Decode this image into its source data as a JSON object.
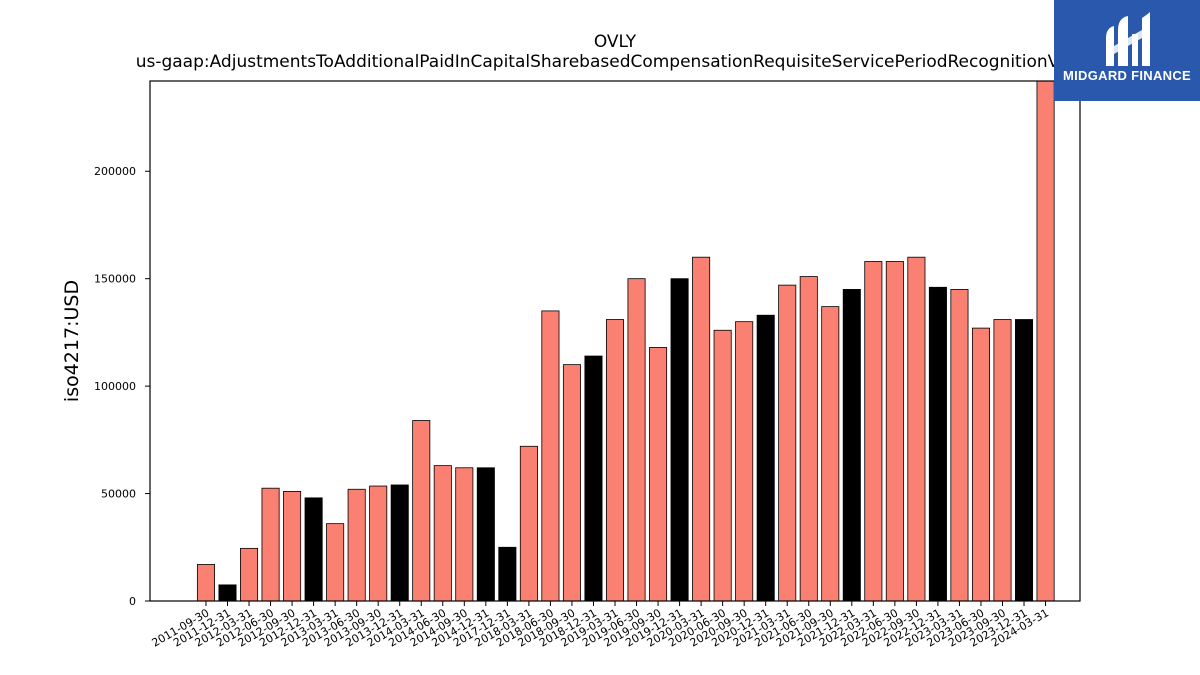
{
  "logo": {
    "text": "MIDGARD FINANCE",
    "background": "#2a58ac",
    "mark_icon": "midgard-m-icon"
  },
  "chart_data": {
    "type": "bar",
    "title": "OVLY",
    "subtitle": "us-gaap:AdjustmentsToAdditionalPaidInCapitalSharebasedCompensationRequisiteServicePeriodRecognitionValue",
    "xlabel": "",
    "ylabel": "iso4217:USD",
    "ylim": [
      0,
      242000
    ],
    "yticks": [
      0,
      50000,
      100000,
      150000,
      200000
    ],
    "grid": false,
    "legend": "none",
    "colors": {
      "default": "#fa8072",
      "highlight": "#000000",
      "edge": "#000000"
    },
    "categories": [
      "2011-09-30",
      "2011-12-31",
      "2012-03-31",
      "2012-06-30",
      "2012-09-30",
      "2012-12-31",
      "2013-03-31",
      "2013-06-30",
      "2013-09-30",
      "2013-12-31",
      "2014-03-31",
      "2014-06-30",
      "2014-09-30",
      "2014-12-31",
      "2017-12-31",
      "2018-03-31",
      "2018-06-30",
      "2018-09-30",
      "2018-12-31",
      "2019-03-31",
      "2019-06-30",
      "2019-09-30",
      "2019-12-31",
      "2020-03-31",
      "2020-06-30",
      "2020-09-30",
      "2020-12-31",
      "2021-03-31",
      "2021-06-30",
      "2021-09-30",
      "2021-12-31",
      "2022-03-31",
      "2022-06-30",
      "2022-09-30",
      "2022-12-31",
      "2023-03-31",
      "2023-06-30",
      "2023-09-30",
      "2023-12-31",
      "2024-03-31"
    ],
    "values": [
      17000,
      7500,
      24500,
      52500,
      51000,
      48000,
      36000,
      52000,
      53500,
      54000,
      84000,
      63000,
      62000,
      62000,
      25000,
      72000,
      135000,
      110000,
      114000,
      131000,
      150000,
      118000,
      150000,
      160000,
      126000,
      130000,
      133000,
      147000,
      151000,
      137000,
      145000,
      158000,
      158000,
      160000,
      146000,
      145000,
      127000,
      131000,
      131000,
      242000
    ],
    "highlight": [
      false,
      true,
      false,
      false,
      false,
      true,
      false,
      false,
      false,
      true,
      false,
      false,
      false,
      true,
      true,
      false,
      false,
      false,
      true,
      false,
      false,
      false,
      true,
      false,
      false,
      false,
      true,
      false,
      false,
      false,
      true,
      false,
      false,
      false,
      true,
      false,
      false,
      false,
      true,
      false
    ]
  }
}
